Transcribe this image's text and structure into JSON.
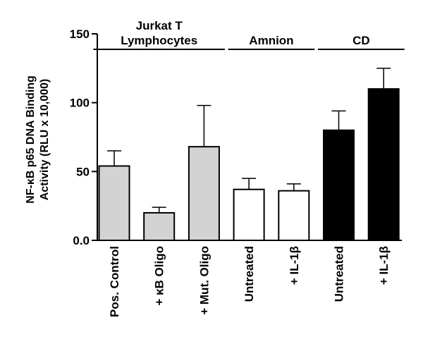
{
  "chart_data": {
    "type": "bar",
    "ylabel_line1": "NF-κB p65 DNA Binding",
    "ylabel_line2": "Activity (RLU x 10,000)",
    "ylim": [
      0,
      150
    ],
    "yticks": [
      "0.0",
      "50",
      "100",
      "150"
    ],
    "ytick_values": [
      0,
      50,
      100,
      150
    ],
    "categories": [
      "Pos. Control",
      "+ κB Oligo",
      "+ Mut. Oligo",
      "Untreated",
      "+ IL-1β",
      "Untreated",
      "+ IL-1β"
    ],
    "values": [
      54,
      20,
      68,
      37,
      36,
      80,
      110
    ],
    "errors": [
      11,
      4,
      30,
      8,
      5,
      14,
      15
    ],
    "bar_colors": [
      "#d3d3d3",
      "#d3d3d3",
      "#d3d3d3",
      "#ffffff",
      "#ffffff",
      "#000000",
      "#000000"
    ],
    "groups": [
      {
        "label_lines": [
          "Jurkat T",
          "Lymphocytes"
        ],
        "start": 0,
        "end": 2
      },
      {
        "label_lines": [
          "Amnion"
        ],
        "start": 3,
        "end": 4
      },
      {
        "label_lines": [
          "CD"
        ],
        "start": 5,
        "end": 6
      }
    ],
    "grid": false
  }
}
